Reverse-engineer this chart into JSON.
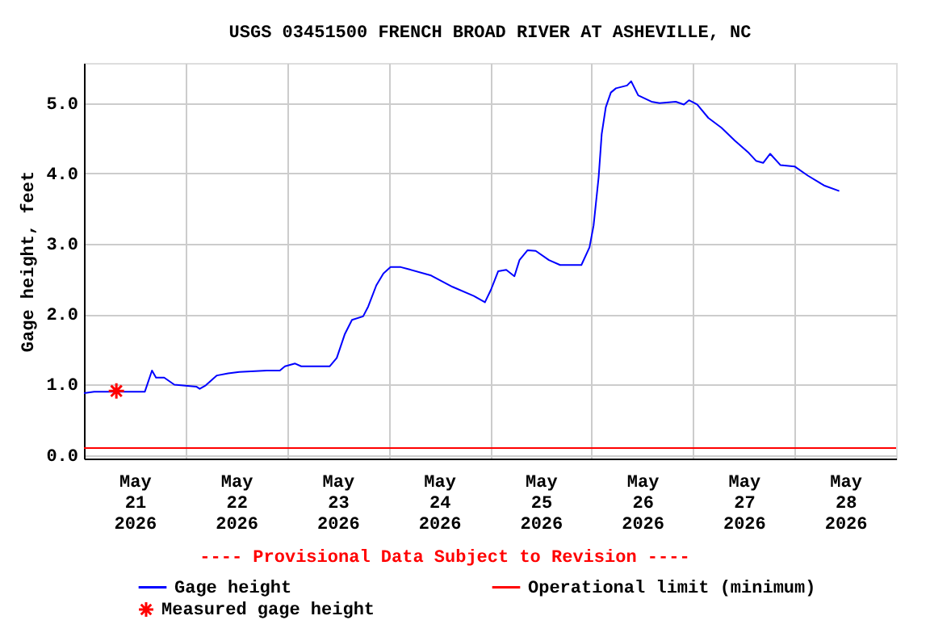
{
  "chart_data": {
    "type": "line",
    "title": "USGS 03451500 FRENCH BROAD RIVER AT ASHEVILLE, NC",
    "ylabel": "Gage height, feet",
    "annotations": [
      "---- Provisional Data Subject to Revision ----"
    ],
    "series": [
      {
        "name": "Gage height",
        "color": "#0000ff",
        "x": [
          "2026-05-21T00:00",
          "2026-05-21T02:24",
          "2026-05-21T14:24",
          "2026-05-21T16:05",
          "2026-05-21T17:02",
          "2026-05-21T18:58",
          "2026-05-21T21:22",
          "2026-05-22T02:38",
          "2026-05-22T03:22",
          "2026-05-22T04:48",
          "2026-05-22T07:26",
          "2026-05-22T10:05",
          "2026-05-22T12:43",
          "2026-05-22T19:12",
          "2026-05-22T22:19",
          "2026-05-22T23:31",
          "2026-05-23T01:55",
          "2026-05-23T03:22",
          "2026-05-23T10:05",
          "2026-05-23T11:46",
          "2026-05-23T13:41",
          "2026-05-23T15:22",
          "2026-05-23T18:00",
          "2026-05-23T19:12",
          "2026-05-23T21:07",
          "2026-05-23T22:48",
          "2026-05-24T00:29",
          "2026-05-24T02:53",
          "2026-05-24T04:48",
          "2026-05-24T10:05",
          "2026-05-24T15:07",
          "2026-05-24T20:10",
          "2026-05-24T22:48",
          "2026-05-25T00:14",
          "2026-05-25T01:55",
          "2026-05-25T03:50",
          "2026-05-25T05:46",
          "2026-05-25T06:58",
          "2026-05-25T08:53",
          "2026-05-25T10:48",
          "2026-05-25T13:55",
          "2026-05-25T16:34",
          "2026-05-25T21:36",
          "2026-05-25T23:31",
          "2026-05-26T00:29",
          "2026-05-26T01:41",
          "2026-05-26T02:24",
          "2026-05-26T03:22",
          "2026-05-26T04:34",
          "2026-05-26T05:46",
          "2026-05-26T08:24",
          "2026-05-26T09:22",
          "2026-05-26T11:02",
          "2026-05-26T14:10",
          "2026-05-26T16:05",
          "2026-05-26T19:55",
          "2026-05-26T21:50",
          "2026-05-26T23:02",
          "2026-05-27T00:58",
          "2026-05-27T03:36",
          "2026-05-27T06:43",
          "2026-05-27T09:50",
          "2026-05-27T13:12",
          "2026-05-27T14:53",
          "2026-05-27T16:34",
          "2026-05-27T18:14",
          "2026-05-27T20:38",
          "2026-05-28T00:00",
          "2026-05-28T03:07",
          "2026-05-28T06:58",
          "2026-05-28T10:34"
        ],
        "values": [
          0.88,
          0.9,
          0.9,
          1.2,
          1.1,
          1.1,
          1.0,
          0.97,
          0.94,
          0.99,
          1.13,
          1.16,
          1.18,
          1.2,
          1.2,
          1.26,
          1.3,
          1.26,
          1.26,
          1.38,
          1.72,
          1.92,
          1.97,
          2.11,
          2.41,
          2.58,
          2.67,
          2.67,
          2.64,
          2.55,
          2.39,
          2.26,
          2.17,
          2.35,
          2.61,
          2.63,
          2.54,
          2.77,
          2.91,
          2.9,
          2.77,
          2.7,
          2.7,
          2.95,
          3.26,
          3.95,
          4.56,
          4.94,
          5.15,
          5.21,
          5.25,
          5.31,
          5.11,
          5.02,
          5.0,
          5.02,
          4.98,
          5.04,
          4.98,
          4.79,
          4.65,
          4.47,
          4.29,
          4.18,
          4.15,
          4.28,
          4.12,
          4.1,
          3.97,
          3.83,
          3.75
        ]
      },
      {
        "name": "Measured gage height",
        "type": "scatter",
        "color": "#ff0000",
        "marker": "cross",
        "x": [
          "2026-05-21T07:40"
        ],
        "values": [
          0.91
        ]
      }
    ],
    "ref_lines": [
      {
        "axis": "y",
        "value": 0.1,
        "label": "Operational limit (minimum)",
        "color": "#ff0000"
      }
    ],
    "xlim": [
      "2026-05-21T00:00",
      "2026-05-29T00:00"
    ],
    "xticks": [
      {
        "value": "2026-05-21T12:00",
        "label": "May\n21\n2026"
      },
      {
        "value": "2026-05-22T00:00",
        "label": null
      },
      {
        "value": "2026-05-22T12:00",
        "label": "May\n22\n2026"
      },
      {
        "value": "2026-05-23T00:00",
        "label": null
      },
      {
        "value": "2026-05-23T12:00",
        "label": "May\n23\n2026"
      },
      {
        "value": "2026-05-24T00:00",
        "label": null
      },
      {
        "value": "2026-05-24T12:00",
        "label": "May\n24\n2026"
      },
      {
        "value": "2026-05-25T00:00",
        "label": null
      },
      {
        "value": "2026-05-25T12:00",
        "label": "May\n25\n2026"
      },
      {
        "value": "2026-05-26T00:00",
        "label": null
      },
      {
        "value": "2026-05-26T12:00",
        "label": "May\n26\n2026"
      },
      {
        "value": "2026-05-27T00:00",
        "label": null
      },
      {
        "value": "2026-05-27T12:00",
        "label": "May\n27\n2026"
      },
      {
        "value": "2026-05-28T00:00",
        "label": null
      },
      {
        "value": "2026-05-28T12:00",
        "label": "May\n28\n2026"
      }
    ],
    "ylim": [
      -0.05,
      5.57
    ],
    "yticks": [
      {
        "value": 0,
        "label": "0.0"
      },
      {
        "value": 1,
        "label": "1.0"
      },
      {
        "value": 2,
        "label": "2.0"
      },
      {
        "value": 3,
        "label": "3.0"
      },
      {
        "value": 4,
        "label": "4.0"
      },
      {
        "value": 5,
        "label": "5.0"
      }
    ],
    "grid": true,
    "legend": "bottom"
  }
}
